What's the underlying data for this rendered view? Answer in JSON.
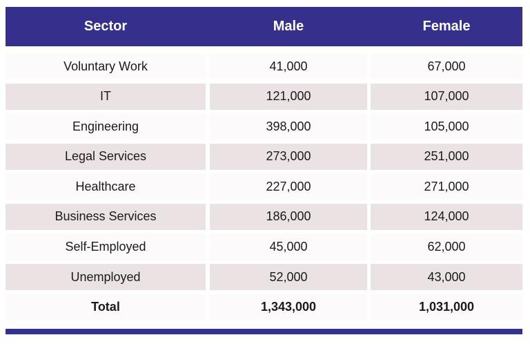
{
  "chart_data": {
    "type": "table",
    "columns": [
      "Sector",
      "Male",
      "Female"
    ],
    "rows": [
      {
        "sector": "Voluntary Work",
        "male": "41,000",
        "female": "67,000"
      },
      {
        "sector": "IT",
        "male": "121,000",
        "female": "107,000"
      },
      {
        "sector": "Engineering",
        "male": "398,000",
        "female": "105,000"
      },
      {
        "sector": "Legal Services",
        "male": "273,000",
        "female": "251,000"
      },
      {
        "sector": "Healthcare",
        "male": "227,000",
        "female": "271,000"
      },
      {
        "sector": "Business Services",
        "male": "186,000",
        "female": "124,000"
      },
      {
        "sector": "Self-Employed",
        "male": "45,000",
        "female": "62,000"
      },
      {
        "sector": "Unemployed",
        "male": "52,000",
        "female": "43,000"
      }
    ],
    "total": {
      "sector": "Total",
      "male": "1,343,000",
      "female": "1,031,000"
    }
  },
  "colors": {
    "header": "#34308b",
    "row_light": "#fcfafa",
    "row_dark": "#ebe3e3"
  }
}
